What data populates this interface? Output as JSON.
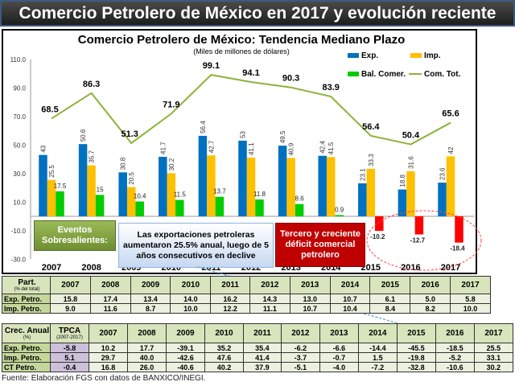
{
  "title": "Comercio Petrolero de México en 2017 y evolución reciente",
  "chart_data": {
    "type": "bar",
    "title": "Comercio Petrolero de México: Tendencia Mediano Plazo",
    "subtitle": "(Miles de millones de dólares)",
    "categories": [
      "2007",
      "2008",
      "2009",
      "2010",
      "2011",
      "2012",
      "2013",
      "2014",
      "2015",
      "2016",
      "2017"
    ],
    "ylim": [
      -30,
      110
    ],
    "yticks": [
      "110.0",
      "90.0",
      "70.0",
      "50.0",
      "30.0",
      "10.0",
      "-10.0",
      "-30.0"
    ],
    "legend_position": "top-right",
    "series": [
      {
        "name": "Exp.",
        "type": "bar",
        "color": "#0070c0",
        "values": [
          43.0,
          50.6,
          30.8,
          41.7,
          56.4,
          53.0,
          49.5,
          42.4,
          23.1,
          18.8,
          23.6
        ]
      },
      {
        "name": "Imp.",
        "type": "bar",
        "color": "#ffc000",
        "values": [
          25.5,
          35.7,
          20.5,
          30.2,
          42.7,
          41.1,
          40.9,
          41.5,
          33.3,
          31.6,
          42.0
        ]
      },
      {
        "name": "Bal. Comer.",
        "type": "bar",
        "color": "#00cc00",
        "negative_color": "#ff0000",
        "values": [
          17.5,
          15.0,
          10.4,
          11.5,
          13.7,
          11.8,
          8.6,
          0.9,
          -10.2,
          -12.7,
          -18.4
        ]
      },
      {
        "name": "Com. Tot.",
        "type": "line",
        "color": "#8db33a",
        "values": [
          68.5,
          86.3,
          51.3,
          71.9,
          99.1,
          94.1,
          90.3,
          83.9,
          56.4,
          50.4,
          65.6
        ]
      }
    ]
  },
  "annotations": {
    "events": "Eventos Sobresalientes:",
    "exports": "Las exportaciones petroleras aumentaron 25.5% anual, luego de 5 años consecutivos en declive",
    "deficit": "Tercero y creciente déficit comercial petrolero"
  },
  "part_table": {
    "header": "Part.",
    "header_sub": "(% del total)",
    "years": [
      "2007",
      "2008",
      "2009",
      "2010",
      "2011",
      "2012",
      "2013",
      "2014",
      "2015",
      "2016",
      "2017"
    ],
    "rows": [
      {
        "label": "Exp. Petro.",
        "values": [
          "15.8",
          "17.4",
          "13.4",
          "14.0",
          "16.2",
          "14.3",
          "13.0",
          "10.7",
          "6.1",
          "5.0",
          "5.8"
        ]
      },
      {
        "label": "Imp. Petro.",
        "values": [
          "9.0",
          "11.6",
          "8.7",
          "10.0",
          "12.2",
          "11.1",
          "10.7",
          "10.4",
          "8.4",
          "8.2",
          "10.0"
        ]
      }
    ]
  },
  "growth_table": {
    "header": "Crec. Anual",
    "header_sub": "(%)",
    "tpca": "TPCA",
    "tpca_sub": "(2007-2017)",
    "years": [
      "2007",
      "2008",
      "2009",
      "2010",
      "2011",
      "2012",
      "2013",
      "2014",
      "2015",
      "2016",
      "2017"
    ],
    "rows": [
      {
        "label": "Exp. Petro.",
        "tpca": "-5.8",
        "values": [
          "10.2",
          "17.7",
          "-39.1",
          "35.2",
          "35.4",
          "-6.2",
          "-6.6",
          "-14.4",
          "-45.5",
          "-18.5",
          "25.5"
        ]
      },
      {
        "label": "Imp. Petro.",
        "tpca": "5.1",
        "values": [
          "29.7",
          "40.0",
          "-42.6",
          "47.6",
          "41.4",
          "-3.7",
          "-0.7",
          "1.5",
          "-19.8",
          "-5.2",
          "33.1"
        ]
      },
      {
        "label": "CT Petro.",
        "tpca": "-0.4",
        "values": [
          "16.8",
          "26.0",
          "-40.6",
          "40.2",
          "37.9",
          "-5.1",
          "-4.0",
          "-7.2",
          "-32.8",
          "-10.6",
          "30.2"
        ]
      }
    ]
  },
  "footer": "Fuente: Elaboración FGS con datos de BANXICO/INEGI."
}
